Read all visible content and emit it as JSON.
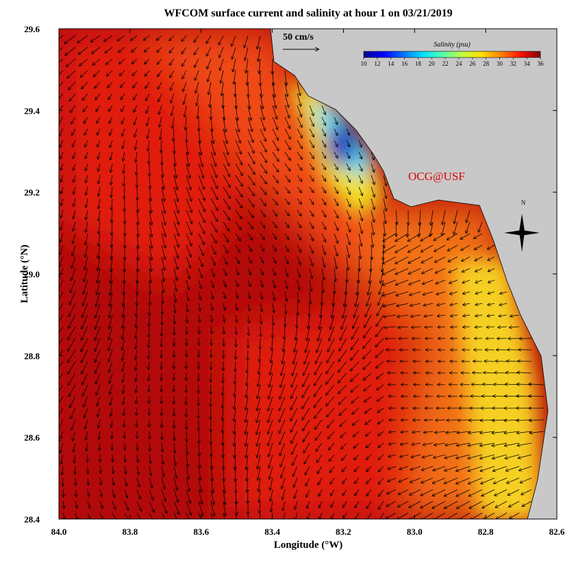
{
  "chart_data": {
    "type": "map",
    "title": "WFCOM surface current and salinity at hour 1 on 03/21/2019",
    "x_label": "Longitude (°W)",
    "y_label": "Latitude (°N)",
    "xlim": [
      84.0,
      82.6
    ],
    "ylim": [
      28.4,
      29.6
    ],
    "xticks": [
      {
        "value": 84.0,
        "label": "84.0"
      },
      83.8,
      83.6,
      83.4,
      83.2,
      {
        "value": 83.0,
        "label": "83.0"
      },
      82.8,
      82.6
    ],
    "yticks": [
      28.4,
      28.6,
      28.8,
      {
        "value": 29.0,
        "label": "29.0"
      },
      29.2,
      29.4,
      29.6
    ],
    "colorbar": {
      "label": "Salinity (psu)",
      "lim": [
        10,
        36
      ],
      "ticks": [
        10,
        12,
        14,
        16,
        18,
        20,
        22,
        24,
        26,
        28,
        30,
        32,
        34,
        36
      ],
      "colormap": [
        "#00008f",
        "#0000ff",
        "#0070ff",
        "#00dfff",
        "#50ffaf",
        "#bfff40",
        "#ffe000",
        "#ff8000",
        "#ff1000",
        "#800000"
      ]
    },
    "scale_label": "50 cm/s",
    "annotation": "OCG@USF",
    "compass_label": "N"
  }
}
